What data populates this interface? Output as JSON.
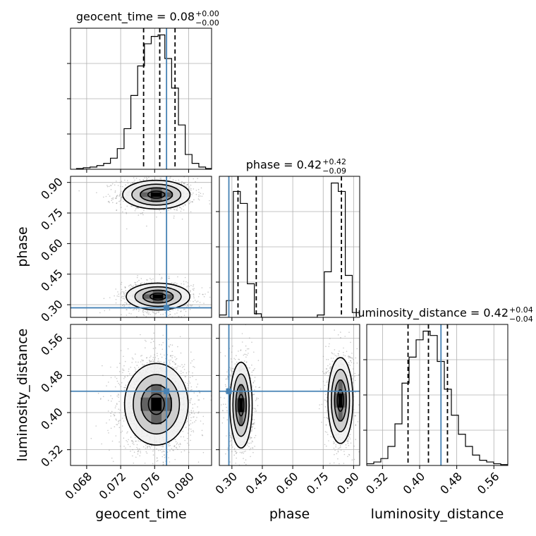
{
  "chart_data": {
    "type": "scatter",
    "subtype": "corner-plot",
    "grid": true,
    "parameters": [
      "geocent_time",
      "phase",
      "luminosity_distance"
    ],
    "truth_color": "#4682b4",
    "titles": [
      {
        "param": "geocent_time",
        "prefix": "geocent_time = 0.08",
        "plus": "+0.00",
        "minus": "−0.00"
      },
      {
        "param": "phase",
        "prefix": "phase = 0.42",
        "plus": "+0.42",
        "minus": "−0.09"
      },
      {
        "param": "luminosity_distance",
        "prefix": "luminosity_distance = 0.42",
        "plus": "+0.04",
        "minus": "−0.04"
      }
    ],
    "xlabels": [
      "geocent_time",
      "phase",
      "luminosity_distance"
    ],
    "ylabels": [
      "phase",
      "luminosity_distance"
    ],
    "ranges": {
      "geocent_time": [
        0.0661,
        0.0827
      ],
      "phase": [
        0.238,
        0.93
      ],
      "luminosity_distance": [
        0.286,
        0.59
      ]
    },
    "tick_labels": {
      "geocent_time": [
        "0.068",
        "0.072",
        "0.076",
        "0.080"
      ],
      "phase": [
        "0.30",
        "0.45",
        "0.60",
        "0.75",
        "0.90"
      ],
      "luminosity_distance": [
        "0.32",
        "0.40",
        "0.48",
        "0.56"
      ]
    },
    "ticks": {
      "geocent_time": [
        0.068,
        0.072,
        0.076,
        0.08
      ],
      "phase": [
        0.3,
        0.45,
        0.6,
        0.75,
        0.9
      ],
      "luminosity_distance": [
        0.32,
        0.4,
        0.48,
        0.56
      ]
    },
    "truths": {
      "geocent_time": 0.0774,
      "phase": 0.285,
      "luminosity_distance": 0.446
    },
    "quantiles": {
      "geocent_time": [
        0.0747,
        0.0766,
        0.0784
      ],
      "phase": [
        0.33,
        0.42,
        0.84
      ],
      "luminosity_distance": [
        0.375,
        0.419,
        0.46
      ]
    },
    "histograms": {
      "geocent_time": {
        "bins": [
          0.0668,
          0.0676,
          0.0684,
          0.0692,
          0.07,
          0.0708,
          0.0716,
          0.0724,
          0.0732,
          0.074,
          0.0748,
          0.0756,
          0.0764,
          0.0772,
          0.078,
          0.0788,
          0.0796,
          0.0804,
          0.0812,
          0.082,
          0.0827
        ],
        "counts": [
          1,
          2,
          3,
          5,
          8,
          15,
          28,
          55,
          100,
          140,
          170,
          180,
          182,
          150,
          110,
          60,
          20,
          8,
          3,
          1
        ]
      },
      "phase": {
        "bins": [
          0.238,
          0.2725,
          0.307,
          0.3415,
          0.376,
          0.4105,
          0.445,
          0.4795,
          0.514,
          0.5485,
          0.583,
          0.6175,
          0.652,
          0.6865,
          0.721,
          0.7555,
          0.79,
          0.8245,
          0.859,
          0.8935,
          0.93
        ],
        "counts": [
          2,
          14,
          105,
          95,
          28,
          3,
          0,
          0,
          0,
          0,
          0,
          0,
          0,
          0,
          2,
          38,
          112,
          105,
          35,
          4
        ]
      },
      "luminosity_distance": {
        "bins": [
          0.286,
          0.3012,
          0.3164,
          0.3316,
          0.3468,
          0.362,
          0.3772,
          0.3924,
          0.4076,
          0.4228,
          0.438,
          0.4532,
          0.4684,
          0.4836,
          0.4988,
          0.514,
          0.5292,
          0.5444,
          0.5596,
          0.5748,
          0.59
        ],
        "counts": [
          2,
          4,
          8,
          22,
          48,
          95,
          125,
          145,
          155,
          150,
          120,
          88,
          58,
          36,
          22,
          12,
          6,
          4,
          2,
          1
        ]
      }
    },
    "modes_2d": {
      "geocent_time__phase": [
        {
          "cx": 0.0762,
          "cy": 0.84,
          "sx": 0.0018,
          "sy": 0.032,
          "w": 0.5
        },
        {
          "cx": 0.0764,
          "cy": 0.34,
          "sx": 0.0017,
          "sy": 0.03,
          "w": 0.5
        }
      ],
      "geocent_time__luminosity_distance": [
        {
          "cx": 0.0762,
          "cy": 0.418,
          "sx": 0.0017,
          "sy": 0.04,
          "w": 1.0
        }
      ],
      "phase__luminosity_distance": [
        {
          "cx": 0.345,
          "cy": 0.416,
          "sx": 0.025,
          "sy": 0.042,
          "w": 0.5
        },
        {
          "cx": 0.835,
          "cy": 0.426,
          "sx": 0.028,
          "sy": 0.042,
          "w": 0.5
        }
      ]
    }
  }
}
